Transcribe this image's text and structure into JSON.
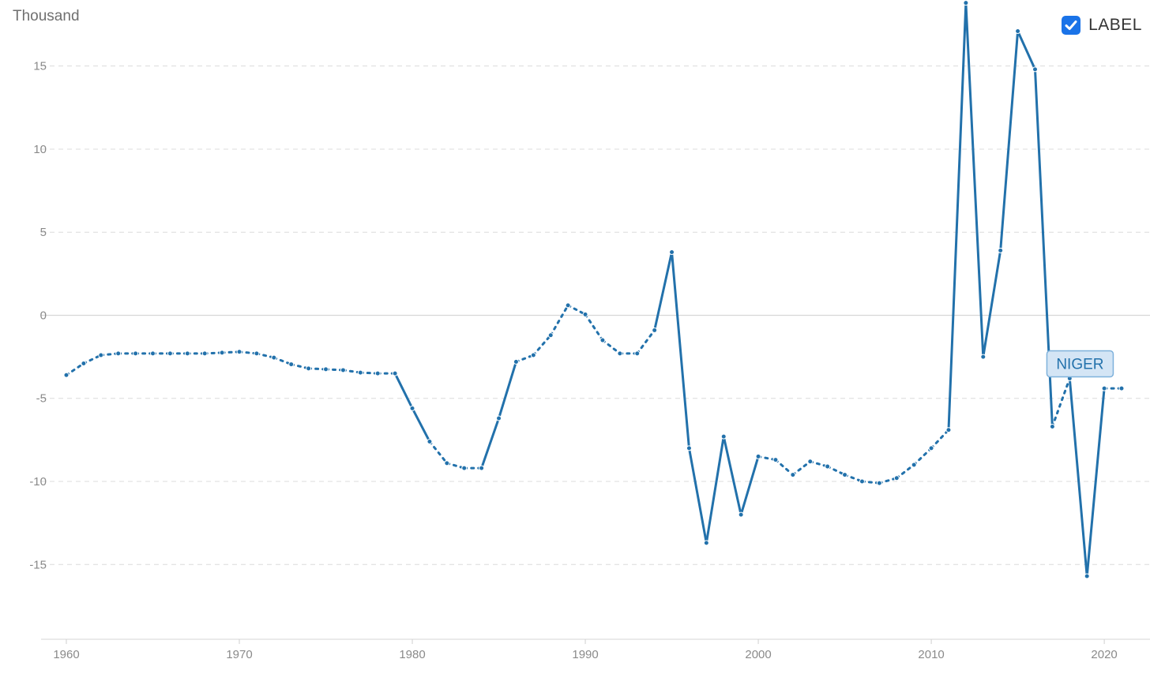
{
  "chart_data": {
    "type": "line",
    "unit_label": "Thousand",
    "legend_label": "LABEL",
    "legend_checked": true,
    "series_tag": "NIGER",
    "series_color": "#2271ab",
    "tag_fill": "#d4e5f5",
    "grid": true,
    "ylim": [
      -19.5,
      18.5
    ],
    "xlim": [
      1960,
      2021
    ],
    "yticks": [
      15,
      10,
      5,
      0,
      -5,
      -10,
      -15
    ],
    "ytick_labels": [
      "15",
      "10",
      "5",
      "0",
      "-5",
      "-10",
      "-15"
    ],
    "xticks": [
      1960,
      1970,
      1980,
      1990,
      2000,
      2010,
      2020
    ],
    "xtick_labels": [
      "1960",
      "1970",
      "1980",
      "1990",
      "2000",
      "2010",
      "2020"
    ],
    "x": [
      1960,
      1961,
      1962,
      1963,
      1964,
      1965,
      1966,
      1967,
      1968,
      1969,
      1970,
      1971,
      1972,
      1973,
      1974,
      1975,
      1976,
      1977,
      1978,
      1979,
      1980,
      1981,
      1982,
      1983,
      1984,
      1985,
      1986,
      1987,
      1988,
      1989,
      1990,
      1991,
      1992,
      1993,
      1994,
      1995,
      1996,
      1997,
      1998,
      1999,
      2000,
      2001,
      2002,
      2003,
      2004,
      2005,
      2006,
      2007,
      2008,
      2009,
      2010,
      2011,
      2012,
      2013,
      2014,
      2015,
      2016,
      2017,
      2018,
      2019,
      2020,
      2021
    ],
    "values": [
      -3.6,
      -2.9,
      -2.4,
      -2.3,
      -2.3,
      -2.3,
      -2.3,
      -2.3,
      -2.3,
      -2.25,
      -2.2,
      -2.3,
      -2.55,
      -2.95,
      -3.2,
      -3.25,
      -3.3,
      -3.45,
      -3.5,
      -3.5,
      -5.6,
      -7.6,
      -8.9,
      -9.2,
      -9.2,
      -6.2,
      -2.8,
      -2.4,
      -1.2,
      0.6,
      0.05,
      -1.5,
      -2.3,
      -2.3,
      -0.9,
      3.8,
      -8.0,
      -13.7,
      -7.3,
      -12.0,
      -8.5,
      -8.7,
      -9.6,
      -8.8,
      -9.1,
      -9.6,
      -10.0,
      -10.1,
      -9.8,
      -9.0,
      -8.0,
      -6.9,
      18.8,
      -2.5,
      3.9,
      17.1,
      14.8,
      -6.7,
      -3.8,
      -15.7,
      -4.4,
      -4.4
    ],
    "segment_styles": [
      "dotted",
      "dotted",
      "dotted",
      "dotted",
      "dotted",
      "dotted",
      "dotted",
      "dotted",
      "dotted",
      "dotted",
      "dotted",
      "dotted",
      "dotted",
      "dotted",
      "dotted",
      "dotted",
      "dotted",
      "dotted",
      "dotted",
      "solid",
      "solid",
      "dotted",
      "dotted",
      "dotted",
      "solid",
      "solid",
      "dotted",
      "dotted",
      "dotted",
      "dotted",
      "dotted",
      "dotted",
      "dotted",
      "dotted",
      "solid",
      "solid",
      "solid",
      "solid",
      "solid",
      "solid",
      "dotted",
      "dotted",
      "dotted",
      "dotted",
      "dotted",
      "dotted",
      "dotted",
      "dotted",
      "dotted",
      "dotted",
      "dotted",
      "solid",
      "solid",
      "solid",
      "solid",
      "solid",
      "solid",
      "dotted",
      "solid",
      "solid",
      "dotted"
    ]
  }
}
